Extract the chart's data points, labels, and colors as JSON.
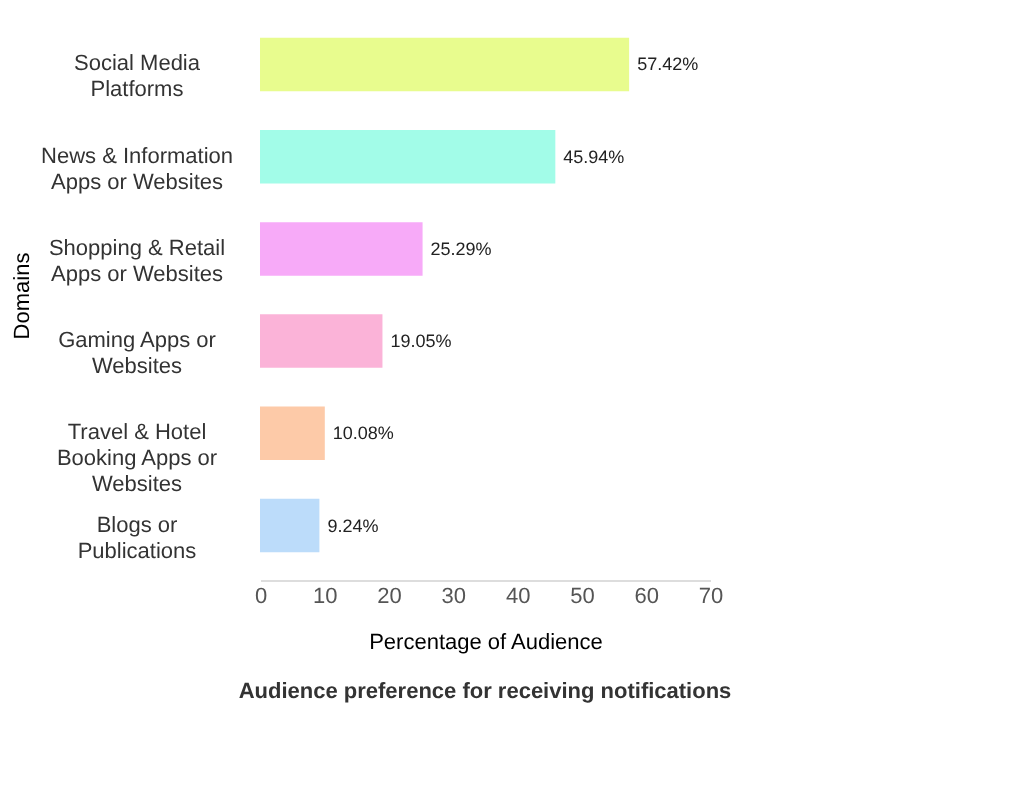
{
  "chart_data": {
    "type": "bar",
    "orientation": "horizontal",
    "title": "Audience preference for receiving notifications",
    "xlabel": "Percentage of Audience",
    "ylabel": "Domains",
    "categories": [
      "Social Media Platforms",
      "News & Information Apps or Websites",
      "Shopping & Retail Apps or Websites",
      "Gaming Apps or Websites",
      "Travel & Hotel Booking Apps or Websites",
      "Blogs or Publications"
    ],
    "values": [
      57.42,
      45.94,
      25.29,
      19.05,
      10.08,
      9.24
    ],
    "value_labels": [
      "57.42%",
      "45.94%",
      "25.29%",
      "19.05%",
      "10.08%",
      "9.24%"
    ],
    "colors": [
      "#e8fc8e",
      "#a2fce8",
      "#f7aaf8",
      "#fbb3d8",
      "#fdcaa8",
      "#bcdcfa"
    ],
    "xlim": [
      0,
      70
    ],
    "xticks": [
      0,
      10,
      20,
      30,
      40,
      50,
      60,
      70
    ],
    "grid": false
  }
}
